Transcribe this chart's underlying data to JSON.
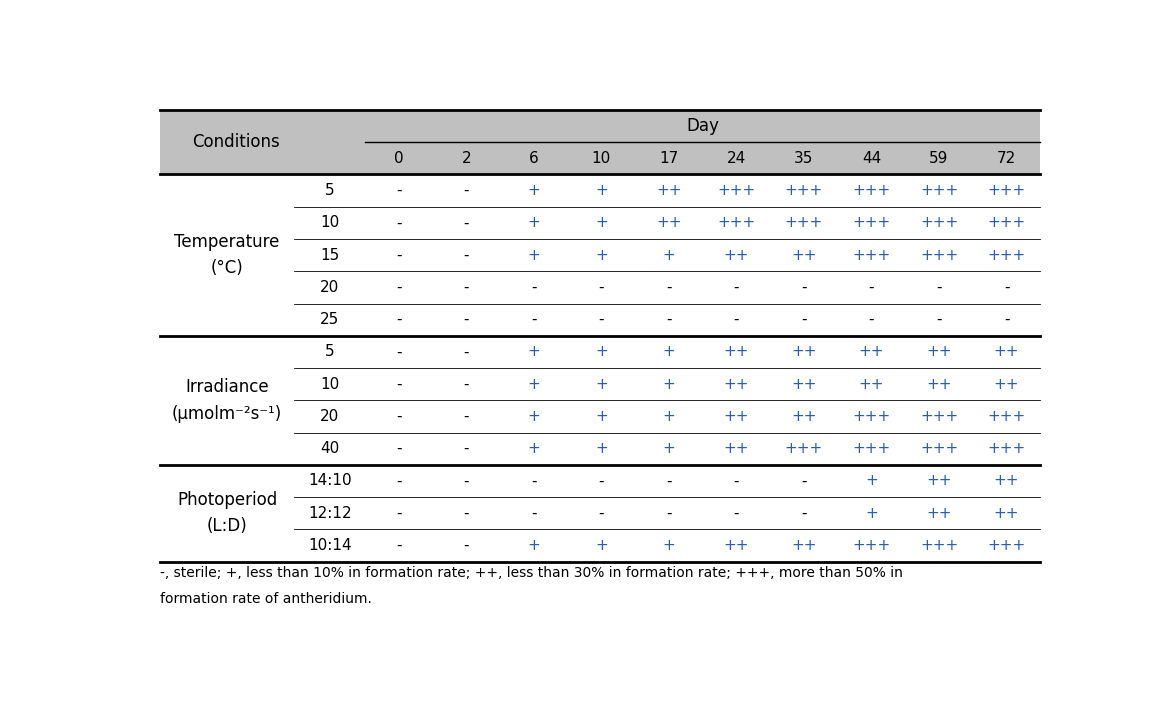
{
  "day_cols": [
    "0",
    "2",
    "6",
    "10",
    "17",
    "24",
    "35",
    "44",
    "59",
    "72"
  ],
  "sections": [
    {
      "label": "Temperature\n(°C)",
      "rows": [
        {
          "sub": "5",
          "values": [
            "-",
            "-",
            "+",
            "+",
            "++",
            "+++",
            "+++",
            "+++",
            "+++",
            "+++"
          ]
        },
        {
          "sub": "10",
          "values": [
            "-",
            "-",
            "+",
            "+",
            "++",
            "+++",
            "+++",
            "+++",
            "+++",
            "+++"
          ]
        },
        {
          "sub": "15",
          "values": [
            "-",
            "-",
            "+",
            "+",
            "+",
            "++",
            "++",
            "+++",
            "+++",
            "+++"
          ]
        },
        {
          "sub": "20",
          "values": [
            "-",
            "-",
            "-",
            "-",
            "-",
            "-",
            "-",
            "-",
            "-",
            "-"
          ]
        },
        {
          "sub": "25",
          "values": [
            "-",
            "-",
            "-",
            "-",
            "-",
            "-",
            "-",
            "-",
            "-",
            "-"
          ]
        }
      ]
    },
    {
      "label": "Irradiance\n(μmolm⁻²s⁻¹)",
      "rows": [
        {
          "sub": "5",
          "values": [
            "-",
            "-",
            "+",
            "+",
            "+",
            "++",
            "++",
            "++",
            "++",
            "++"
          ]
        },
        {
          "sub": "10",
          "values": [
            "-",
            "-",
            "+",
            "+",
            "+",
            "++",
            "++",
            "++",
            "++",
            "++"
          ]
        },
        {
          "sub": "20",
          "values": [
            "-",
            "-",
            "+",
            "+",
            "+",
            "++",
            "++",
            "+++",
            "+++",
            "+++"
          ]
        },
        {
          "sub": "40",
          "values": [
            "-",
            "-",
            "+",
            "+",
            "+",
            "++",
            "+++",
            "+++",
            "+++",
            "+++"
          ]
        }
      ]
    },
    {
      "label": "Photoperiod\n(L:D)",
      "rows": [
        {
          "sub": "14:10",
          "values": [
            "-",
            "-",
            "-",
            "-",
            "-",
            "-",
            "-",
            "+",
            "++",
            "++"
          ]
        },
        {
          "sub": "12:12",
          "values": [
            "-",
            "-",
            "-",
            "-",
            "-",
            "-",
            "-",
            "+",
            "++",
            "++"
          ]
        },
        {
          "sub": "10:14",
          "values": [
            "-",
            "-",
            "+",
            "+",
            "+",
            "++",
            "++",
            "+++",
            "+++",
            "+++"
          ]
        }
      ]
    }
  ],
  "footnote_line1": "-, sterile; +, less than 10% in formation rate; ++, less than 30% in formation rate; +++, more than 50% in",
  "footnote_line2": "formation rate of antheridium.",
  "header_bg": "#c0c0c0",
  "text_color_main": "#000000",
  "text_color_plus": "#2c5fa8",
  "font_size": 11,
  "font_size_label": 12,
  "font_size_sub": 11,
  "font_size_footnote": 10
}
